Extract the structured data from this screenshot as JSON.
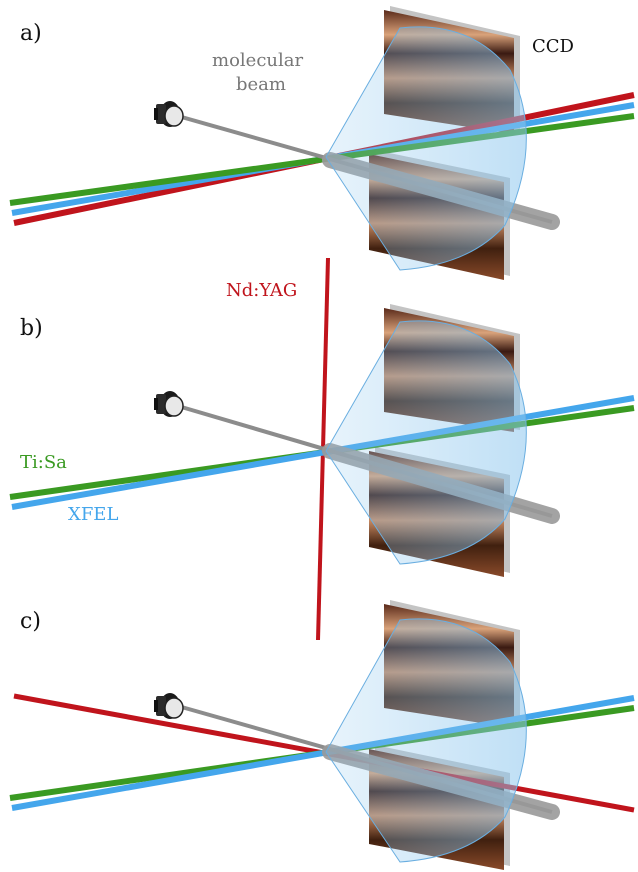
{
  "panels": [
    {
      "label": "a)",
      "annotations": {
        "ccd": "CCD",
        "beam_line1": "molecular",
        "beam_line2": "beam"
      }
    },
    {
      "label": "b)",
      "annotations": {
        "ndyag": "Nd:YAG",
        "tisa": "Ti:Sa",
        "xfel": "XFEL"
      }
    },
    {
      "label": "c)"
    }
  ],
  "colors": {
    "ndyag": "#c0141c",
    "tisa": "#3a9a22",
    "xfel": "#44a6ec",
    "molecular_beam": "#8c8c8c",
    "cone": "#8cc6ee",
    "detector_edge": "#bdbdbd"
  }
}
